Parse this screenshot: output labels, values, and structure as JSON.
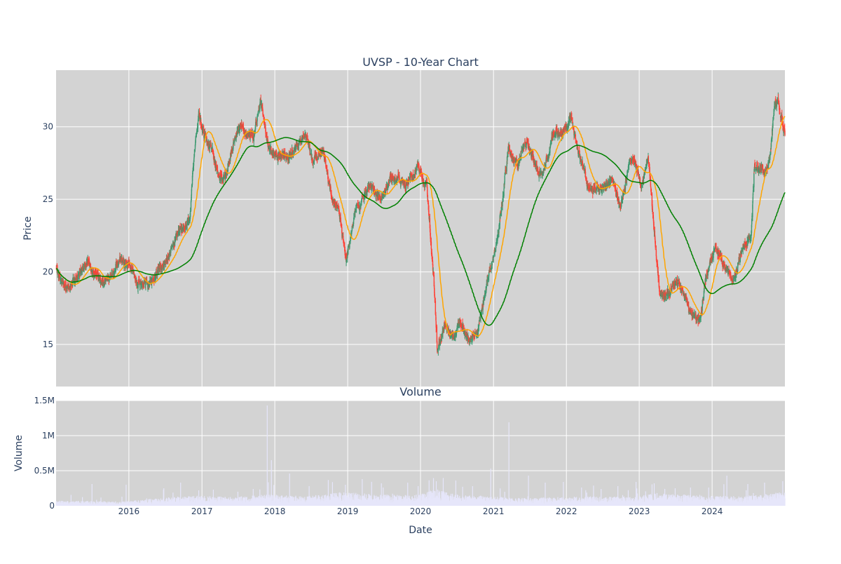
{
  "chart_data": [
    {
      "type": "candlestick",
      "title": "UVSP - 10-Year Chart",
      "xlabel": "",
      "ylabel": "Price",
      "ylim": [
        12.1,
        33.9
      ],
      "yticks": [
        15,
        20,
        25,
        30
      ],
      "xlim": [
        "2015-01-01",
        "2024-12-31"
      ],
      "grid": true,
      "background": "#d3d3d3",
      "colors": {
        "up": "#3d9970",
        "down": "#ff4136",
        "ma_short": "#ffa500",
        "ma_long": "#008000"
      },
      "price_keyframes": [
        [
          "2015-01-02",
          20.2
        ],
        [
          "2015-02-15",
          18.9
        ],
        [
          "2015-04-15",
          19.8
        ],
        [
          "2015-06-15",
          20.5
        ],
        [
          "2015-08-15",
          19.2
        ],
        [
          "2015-10-01",
          19.5
        ],
        [
          "2015-11-15",
          20.8
        ],
        [
          "2016-01-05",
          20.5
        ],
        [
          "2016-02-15",
          19.0
        ],
        [
          "2016-05-01",
          19.4
        ],
        [
          "2016-07-15",
          21.0
        ],
        [
          "2016-09-15",
          22.8
        ],
        [
          "2016-11-01",
          23.5
        ],
        [
          "2016-11-20",
          27.5
        ],
        [
          "2016-12-15",
          30.8
        ],
        [
          "2017-01-15",
          29.5
        ],
        [
          "2017-03-01",
          28.0
        ],
        [
          "2017-04-15",
          26.2
        ],
        [
          "2017-06-01",
          28.5
        ],
        [
          "2017-07-15",
          30.0
        ],
        [
          "2017-09-15",
          29.2
        ],
        [
          "2017-10-20",
          31.8
        ],
        [
          "2017-11-30",
          28.8
        ],
        [
          "2018-01-15",
          28.0
        ],
        [
          "2018-03-01",
          27.8
        ],
        [
          "2018-04-15",
          28.5
        ],
        [
          "2018-06-01",
          29.5
        ],
        [
          "2018-07-15",
          27.5
        ],
        [
          "2018-09-01",
          28.5
        ],
        [
          "2018-10-15",
          25.0
        ],
        [
          "2018-11-15",
          24.5
        ],
        [
          "2018-12-24",
          20.8
        ],
        [
          "2019-02-15",
          24.5
        ],
        [
          "2019-04-15",
          26.0
        ],
        [
          "2019-06-15",
          25.0
        ],
        [
          "2019-08-15",
          26.5
        ],
        [
          "2019-10-15",
          25.8
        ],
        [
          "2019-12-15",
          27.0
        ],
        [
          "2020-02-01",
          26.0
        ],
        [
          "2020-03-10",
          19.0
        ],
        [
          "2020-03-25",
          14.5
        ],
        [
          "2020-05-01",
          16.5
        ],
        [
          "2020-06-15",
          15.5
        ],
        [
          "2020-07-15",
          16.8
        ],
        [
          "2020-09-01",
          15.0
        ],
        [
          "2020-10-15",
          16.0
        ],
        [
          "2020-12-15",
          20.0
        ],
        [
          "2021-01-25",
          22.5
        ],
        [
          "2021-03-15",
          28.5
        ],
        [
          "2021-05-01",
          27.5
        ],
        [
          "2021-06-15",
          28.8
        ],
        [
          "2021-08-15",
          26.5
        ],
        [
          "2021-09-15",
          27.0
        ],
        [
          "2021-11-01",
          29.5
        ],
        [
          "2021-12-15",
          29.5
        ],
        [
          "2022-01-25",
          31.0
        ],
        [
          "2022-03-01",
          28.0
        ],
        [
          "2022-04-15",
          26.0
        ],
        [
          "2022-06-15",
          25.5
        ],
        [
          "2022-08-15",
          26.5
        ],
        [
          "2022-09-30",
          24.5
        ],
        [
          "2022-11-15",
          27.8
        ],
        [
          "2022-12-15",
          27.0
        ],
        [
          "2023-01-15",
          26.0
        ],
        [
          "2023-02-15",
          28.0
        ],
        [
          "2023-03-15",
          23.0
        ],
        [
          "2023-04-15",
          18.5
        ],
        [
          "2023-06-01",
          18.5
        ],
        [
          "2023-07-15",
          19.5
        ],
        [
          "2023-09-01",
          17.5
        ],
        [
          "2023-10-30",
          16.5
        ],
        [
          "2023-12-01",
          19.5
        ],
        [
          "2024-01-15",
          21.5
        ],
        [
          "2024-03-01",
          20.5
        ],
        [
          "2024-04-15",
          19.5
        ],
        [
          "2024-06-01",
          21.5
        ],
        [
          "2024-07-15",
          22.5
        ],
        [
          "2024-08-01",
          27.5
        ],
        [
          "2024-09-15",
          27.0
        ],
        [
          "2024-10-15",
          28.0
        ],
        [
          "2024-11-10",
          31.5
        ],
        [
          "2024-11-25",
          32.0
        ],
        [
          "2024-12-31",
          29.5
        ]
      ],
      "series": [
        {
          "kind": "moving-average-short"
        },
        {
          "kind": "moving-average-long"
        }
      ]
    },
    {
      "type": "bar",
      "title": "Volume",
      "xlabel": "Date",
      "ylabel": "Volume",
      "ylim": [
        0,
        1500000
      ],
      "yticks": [
        0,
        500000,
        1000000,
        1500000
      ],
      "ytick_labels": [
        "0",
        "0.5M",
        "1M",
        "1.5M"
      ],
      "xticks": [
        "2016-01-01",
        "2017-01-01",
        "2018-01-01",
        "2019-01-01",
        "2020-01-01",
        "2021-01-01",
        "2022-01-01",
        "2023-01-01",
        "2024-01-01"
      ],
      "xtick_labels": [
        "2016",
        "2017",
        "2018",
        "2019",
        "2020",
        "2021",
        "2022",
        "2023",
        "2024"
      ],
      "grid": true,
      "background": "#d3d3d3",
      "bar_color": "#e6e6fa",
      "volume_keyframes": [
        [
          "2015-01-02",
          60000
        ],
        [
          "2015-12-01",
          50000
        ],
        [
          "2016-06-01",
          90000
        ],
        [
          "2016-12-01",
          120000
        ],
        [
          "2017-06-01",
          100000
        ],
        [
          "2017-12-01",
          130000
        ],
        [
          "2018-06-01",
          110000
        ],
        [
          "2018-12-01",
          160000
        ],
        [
          "2019-06-01",
          130000
        ],
        [
          "2019-12-01",
          120000
        ],
        [
          "2020-03-15",
          200000
        ],
        [
          "2020-06-01",
          140000
        ],
        [
          "2020-12-01",
          110000
        ],
        [
          "2021-06-01",
          90000
        ],
        [
          "2021-12-01",
          100000
        ],
        [
          "2022-06-01",
          110000
        ],
        [
          "2022-12-01",
          100000
        ],
        [
          "2023-04-01",
          150000
        ],
        [
          "2023-10-01",
          120000
        ],
        [
          "2024-06-01",
          110000
        ],
        [
          "2024-12-31",
          160000
        ]
      ],
      "volume_spikes": [
        [
          "2015-06-30",
          310000
        ],
        [
          "2015-12-18",
          300000
        ],
        [
          "2016-06-24",
          250000
        ],
        [
          "2016-09-16",
          330000
        ],
        [
          "2016-12-16",
          220000
        ],
        [
          "2017-06-30",
          200000
        ],
        [
          "2017-09-15",
          240000
        ],
        [
          "2017-11-24",
          1430000
        ],
        [
          "2017-12-15",
          650000
        ],
        [
          "2018-03-16",
          460000
        ],
        [
          "2018-06-22",
          280000
        ],
        [
          "2018-12-21",
          300000
        ],
        [
          "2019-03-15",
          380000
        ],
        [
          "2019-06-28",
          260000
        ],
        [
          "2019-12-20",
          280000
        ],
        [
          "2020-03-20",
          350000
        ],
        [
          "2020-06-26",
          360000
        ],
        [
          "2020-09-18",
          280000
        ],
        [
          "2020-12-18",
          530000
        ],
        [
          "2021-03-19",
          1190000
        ],
        [
          "2021-06-25",
          430000
        ],
        [
          "2021-09-17",
          330000
        ],
        [
          "2021-12-17",
          340000
        ],
        [
          "2022-03-18",
          260000
        ],
        [
          "2022-06-24",
          240000
        ],
        [
          "2022-09-16",
          280000
        ],
        [
          "2022-12-16",
          340000
        ],
        [
          "2023-03-17",
          320000
        ],
        [
          "2023-06-30",
          250000
        ],
        [
          "2023-09-15",
          260000
        ],
        [
          "2023-12-15",
          260000
        ],
        [
          "2024-03-15",
          430000
        ],
        [
          "2024-06-28",
          310000
        ],
        [
          "2024-09-20",
          330000
        ],
        [
          "2024-12-20",
          350000
        ]
      ]
    }
  ]
}
